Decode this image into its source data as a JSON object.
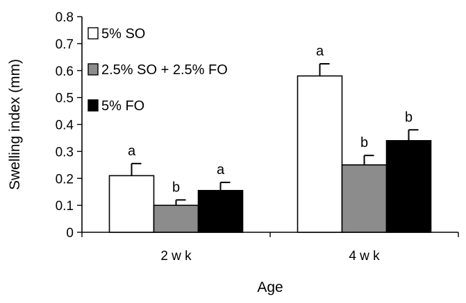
{
  "chart_data": {
    "type": "bar",
    "categories": [
      "2 w k",
      "4 w k"
    ],
    "series": [
      {
        "name": "5% SO",
        "color": "#ffffff",
        "values": [
          0.21,
          0.58
        ],
        "errors": [
          0.045,
          0.045
        ],
        "labels": [
          "a",
          "a"
        ]
      },
      {
        "name": "2.5% SO + 2.5% FO",
        "color": "#8c8c8c",
        "values": [
          0.1,
          0.25
        ],
        "errors": [
          0.02,
          0.035
        ],
        "labels": [
          "b",
          "b"
        ]
      },
      {
        "name": "5% FO",
        "color": "#000000",
        "values": [
          0.155,
          0.34
        ],
        "errors": [
          0.03,
          0.04
        ],
        "labels": [
          "a",
          "b"
        ]
      }
    ],
    "xlabel": "Age",
    "ylabel": "Swelling index (mm)",
    "ylim": [
      0,
      0.8
    ],
    "yticks": [
      "0",
      "0.1",
      "0.2",
      "0.3",
      "0.4",
      "0.5",
      "0.6",
      "0.7",
      "0.8"
    ],
    "grid": false,
    "legend_position": "top-left"
  }
}
